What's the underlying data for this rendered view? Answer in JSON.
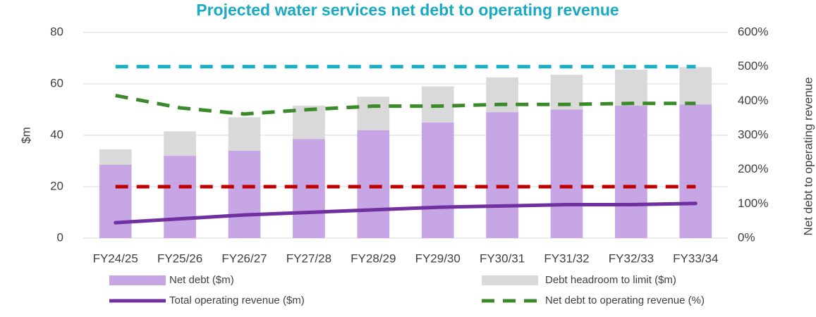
{
  "chart_data": {
    "type": "bar",
    "title": "Projected water services net debt to operating revenue",
    "ylabel": "$m",
    "y2label": "Net debt to operating revenue",
    "categories": [
      "FY24/25",
      "FY25/26",
      "FY26/27",
      "FY27/28",
      "FY28/29",
      "FY29/30",
      "FY30/31",
      "FY31/32",
      "FY32/33",
      "FY33/34"
    ],
    "ylim": [
      0,
      80
    ],
    "yticks": [
      0,
      20,
      40,
      60,
      80
    ],
    "y2lim": [
      0,
      600
    ],
    "y2ticks": [
      {
        "value": 0,
        "label": "0%"
      },
      {
        "value": 100,
        "label": "100%"
      },
      {
        "value": 200,
        "label": "200%"
      },
      {
        "value": 300,
        "label": "300%"
      },
      {
        "value": 400,
        "label": "400%"
      },
      {
        "value": 500,
        "label": "500%"
      },
      {
        "value": 600,
        "label": "600%"
      }
    ],
    "grid": true,
    "series": [
      {
        "name": "Net debt ($m)",
        "type": "bar",
        "stack": true,
        "color": "#c6a6e4",
        "values": [
          28.5,
          32,
          34,
          38.5,
          42,
          45,
          49,
          50,
          51.5,
          52
        ]
      },
      {
        "name": "Debt headroom to limit ($m)",
        "type": "bar",
        "stack": true,
        "color": "#d9d9d9",
        "values": [
          6,
          9.5,
          13,
          13,
          13,
          14,
          13.5,
          13.5,
          14,
          14.5
        ]
      },
      {
        "name": "Total operating revenue ($m)",
        "type": "line",
        "color": "#7030a0",
        "values": [
          6,
          7.5,
          9,
          10,
          11,
          12,
          12.5,
          13,
          13,
          13.5
        ]
      },
      {
        "name": "Net debt to operating revenue (%)",
        "type": "line",
        "dashed": true,
        "axis": "y2",
        "color": "#3a8a2a",
        "values": [
          416,
          380,
          362,
          375,
          385,
          385,
          390,
          390,
          393,
          393
        ]
      },
      {
        "type": "line",
        "dashed": true,
        "axis": "y2",
        "color": "#17b0c8",
        "values": [
          500,
          500,
          500,
          500,
          500,
          500,
          500,
          500,
          500,
          500
        ]
      },
      {
        "type": "line",
        "dashed": true,
        "axis": "y2",
        "color": "#c00000",
        "values": [
          150,
          150,
          150,
          150,
          150,
          150,
          150,
          150,
          150,
          150
        ]
      }
    ]
  }
}
